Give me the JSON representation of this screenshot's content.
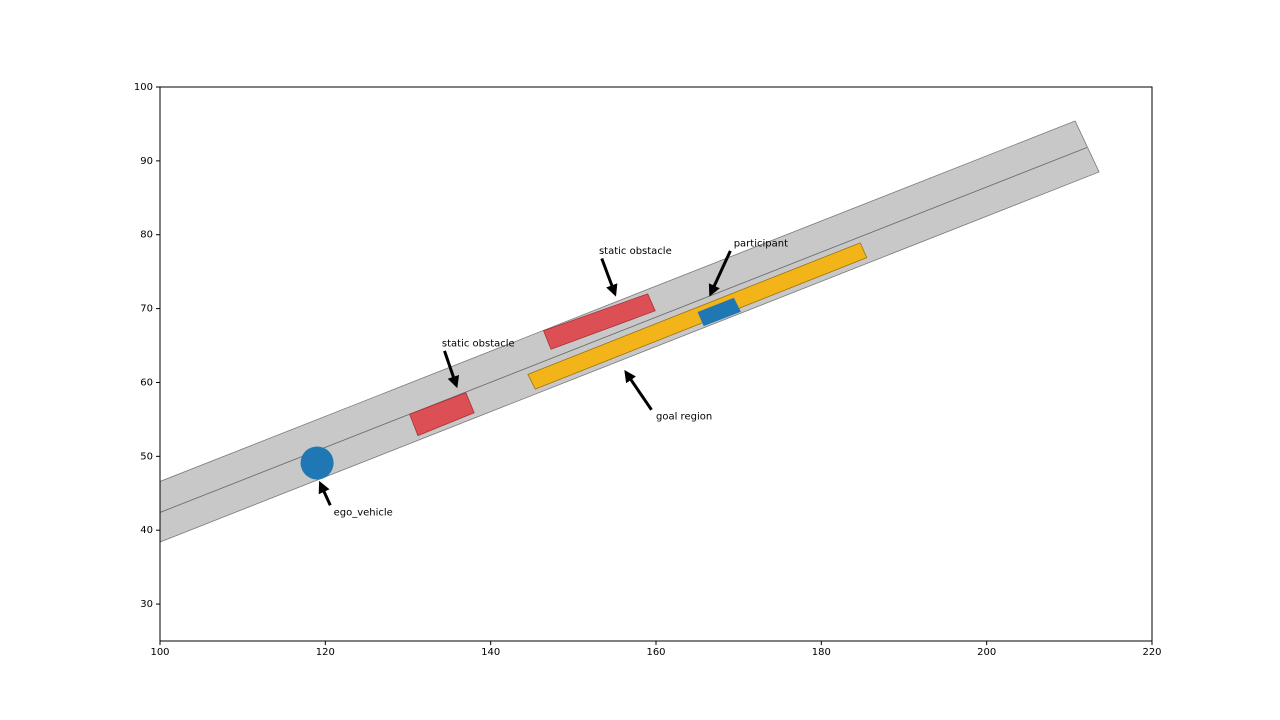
{
  "chart_data": {
    "type": "scenario",
    "xlim": [
      100,
      220
    ],
    "ylim": [
      25,
      100
    ],
    "xticks": [
      100,
      120,
      140,
      160,
      180,
      200,
      220
    ],
    "yticks": [
      30,
      40,
      50,
      60,
      70,
      80,
      90,
      100
    ],
    "road": {
      "color": "#c8c8c8",
      "edge": "#7a7a7a",
      "x": [
        100,
        210.7,
        213.6,
        100
      ],
      "y": [
        46.6,
        95.4,
        88.5,
        38.4
      ]
    },
    "center_line": {
      "color": "#666666",
      "x": [
        100,
        212.1
      ],
      "y": [
        42.4,
        91.8
      ]
    },
    "obstacles": {
      "color": "#dc5055",
      "edge": "#a83035",
      "polygons": [
        {
          "x": [
            130.2,
            137.0,
            138.0,
            131.2
          ],
          "y": [
            55.7,
            58.6,
            55.9,
            52.8
          ]
        },
        {
          "x": [
            146.4,
            159.0,
            159.9,
            147.3
          ],
          "y": [
            67.0,
            72.0,
            69.7,
            64.5
          ]
        }
      ]
    },
    "goal_region": {
      "color": "#f2b418",
      "edge": "#9c7410",
      "x": [
        144.5,
        184.7,
        185.5,
        145.4
      ],
      "y": [
        61.1,
        78.9,
        76.9,
        59.1
      ]
    },
    "participant": {
      "color": "#1f77b4",
      "x": [
        165.1,
        169.4,
        170.2,
        165.8
      ],
      "y": [
        69.5,
        71.4,
        69.6,
        67.7
      ]
    },
    "ego_vehicle": {
      "color": "#1f77b4",
      "x": 119.0,
      "y": 49.1,
      "radius": 2
    },
    "annotations": [
      {
        "text": "static obstacle",
        "xy": [
          136.0,
          59.1
        ],
        "xytext": [
          134.1,
          65.3
        ]
      },
      {
        "text": "static obstacle",
        "xy": [
          155.2,
          71.5
        ],
        "xytext": [
          153.1,
          77.8
        ]
      },
      {
        "text": "participant",
        "xy": [
          166.4,
          71.5
        ],
        "xytext": [
          169.4,
          78.8
        ]
      },
      {
        "text": "goal region",
        "xy": [
          156.1,
          61.8
        ],
        "xytext": [
          160.0,
          55.4
        ]
      },
      {
        "text": "ego_vehicle",
        "xy": [
          119.2,
          46.8
        ],
        "xytext": [
          121.0,
          42.4
        ]
      }
    ]
  }
}
